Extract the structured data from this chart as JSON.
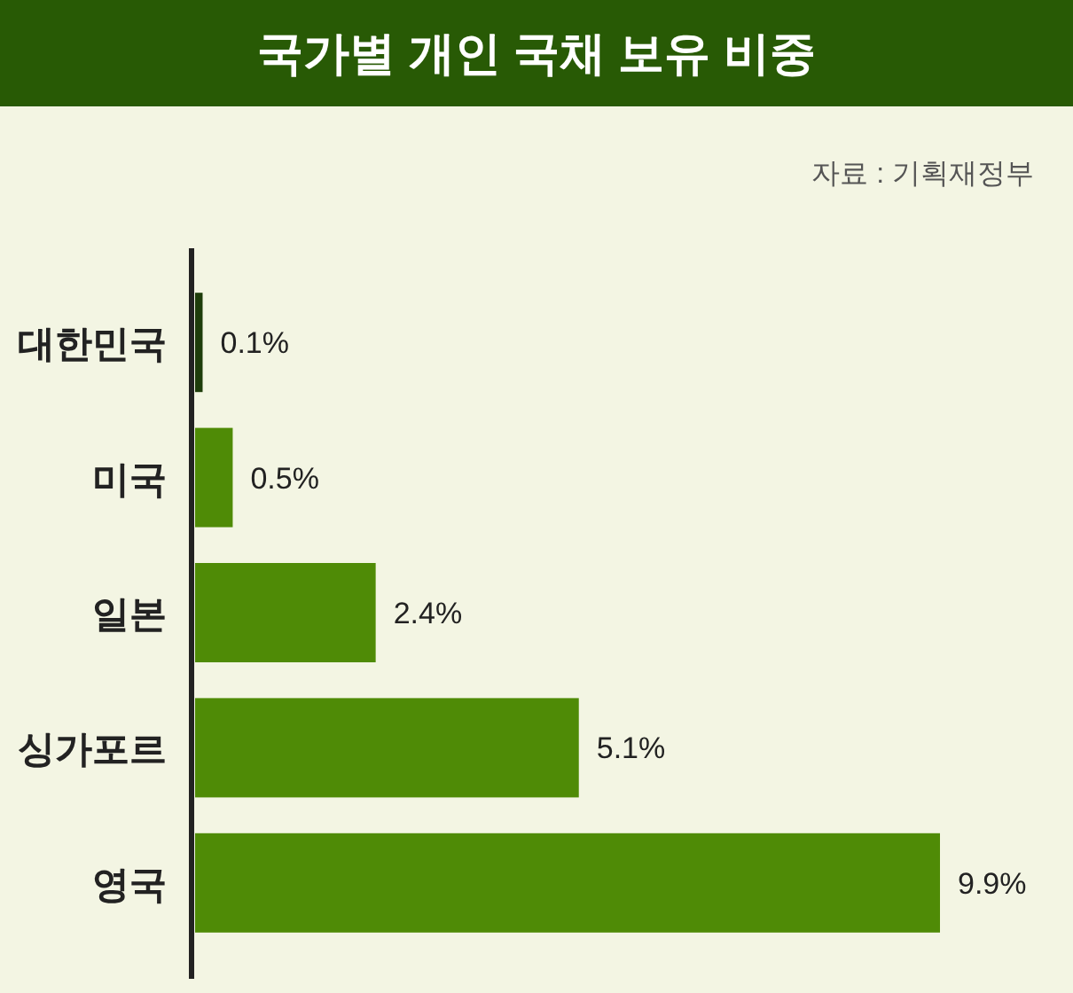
{
  "chart_data": {
    "type": "bar",
    "orientation": "horizontal",
    "title": "국가별 개인 국채 보유 비중",
    "annotations": [
      "자료 : 기획재정부"
    ],
    "categories": [
      "대한민국",
      "미국",
      "일본",
      "싱가포르",
      "영국"
    ],
    "values": [
      0.1,
      0.5,
      2.4,
      5.1,
      9.9
    ],
    "colors": [
      "#1e3d0b",
      "#4f8b06",
      "#4f8b06",
      "#4f8b06",
      "#4f8b06"
    ],
    "value_labels": [
      "0.1%",
      "0.5%",
      "2.4%",
      "5.1%",
      "9.9%"
    ]
  }
}
